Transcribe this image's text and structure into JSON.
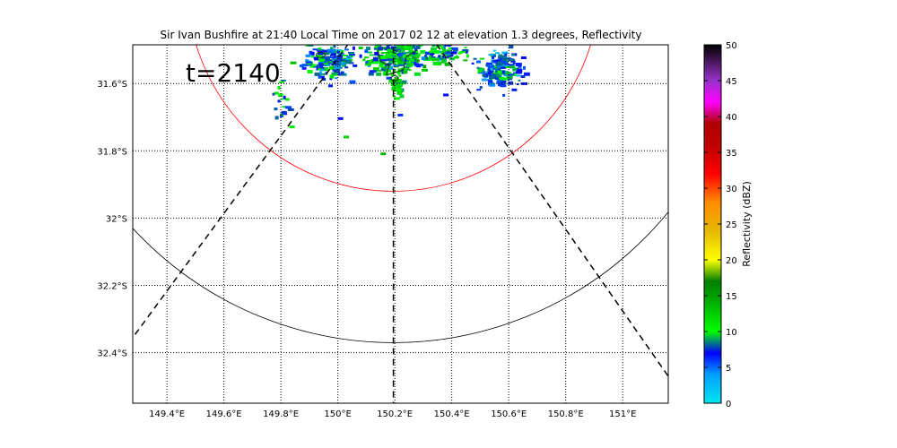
{
  "chart_data": {
    "type": "heatmap",
    "title": "Sir Ivan Bushfire at 21:40 Local Time on 2017 02 12 at elevation 1.3 degrees, Reflectivity",
    "annotation": "t=2140",
    "x_ticks": [
      {
        "value": 149.4,
        "label": "149.4°E"
      },
      {
        "value": 149.6,
        "label": "149.6°E"
      },
      {
        "value": 149.8,
        "label": "149.8°E"
      },
      {
        "value": 150.0,
        "label": "150°E"
      },
      {
        "value": 150.2,
        "label": "150.2°E"
      },
      {
        "value": 150.4,
        "label": "150.4°E"
      },
      {
        "value": 150.6,
        "label": "150.6°E"
      },
      {
        "value": 150.8,
        "label": "150.8°E"
      },
      {
        "value": 151.0,
        "label": "151°E"
      }
    ],
    "y_ticks": [
      {
        "value": -31.6,
        "label": "31.6°S"
      },
      {
        "value": -31.8,
        "label": "31.8°S"
      },
      {
        "value": -32.0,
        "label": "32°S"
      },
      {
        "value": -32.2,
        "label": "32.2°S"
      },
      {
        "value": -32.4,
        "label": "32.4°S"
      }
    ],
    "xlim": [
      149.28,
      151.16
    ],
    "ylim": [
      -32.55,
      -31.485
    ],
    "grid": true,
    "grid_style": "dotted",
    "colorbar": {
      "label": "Reflectivity (dBZ)",
      "min": 0,
      "max": 50,
      "ticks": [
        0,
        5,
        10,
        15,
        20,
        25,
        30,
        35,
        40,
        45,
        50
      ],
      "stops": [
        {
          "value": 0,
          "color": "#00e5ee"
        },
        {
          "value": 4,
          "color": "#00a0ff"
        },
        {
          "value": 7,
          "color": "#0000ff"
        },
        {
          "value": 10,
          "color": "#00ff00"
        },
        {
          "value": 14,
          "color": "#00b000"
        },
        {
          "value": 17,
          "color": "#008000"
        },
        {
          "value": 20,
          "color": "#ffff00"
        },
        {
          "value": 24,
          "color": "#e6b800"
        },
        {
          "value": 28,
          "color": "#ff8c00"
        },
        {
          "value": 32,
          "color": "#ff0000"
        },
        {
          "value": 36,
          "color": "#c00000"
        },
        {
          "value": 39,
          "color": "#b00000"
        },
        {
          "value": 42,
          "color": "#ff00ff"
        },
        {
          "value": 45,
          "color": "#9932cc"
        },
        {
          "value": 50,
          "color": "#000000"
        }
      ]
    },
    "radar": {
      "lon": 150.195,
      "lat": -31.3
    },
    "range_rings": [
      {
        "color": "#ff0000",
        "radius_deg_lat": 0.62
      },
      {
        "color": "#000000",
        "radius_deg_lat": 1.07
      }
    ],
    "radials": [
      {
        "end_lon": 149.28,
        "end_lat": -32.355,
        "style": "dashed"
      },
      {
        "end_lon": 150.195,
        "end_lat": -32.55,
        "style": "dashed"
      },
      {
        "end_lon": 151.16,
        "end_lat": -32.47,
        "style": "dashed"
      }
    ],
    "echo_clusters": [
      {
        "lon": 150.2,
        "lat": -31.51,
        "spread_lon": 0.1,
        "spread_lat": 0.05,
        "count": 260,
        "dbz_mean": 10,
        "dbz_sd": 2.5
      },
      {
        "lon": 149.96,
        "lat": -31.53,
        "spread_lon": 0.09,
        "spread_lat": 0.05,
        "count": 170,
        "dbz_mean": 7.5,
        "dbz_sd": 2.2
      },
      {
        "lon": 150.56,
        "lat": -31.555,
        "spread_lon": 0.08,
        "spread_lat": 0.05,
        "count": 170,
        "dbz_mean": 7.5,
        "dbz_sd": 2.2
      },
      {
        "lon": 150.38,
        "lat": -31.51,
        "spread_lon": 0.08,
        "spread_lat": 0.03,
        "count": 70,
        "dbz_mean": 9,
        "dbz_sd": 2.5
      },
      {
        "lon": 150.2,
        "lat": -31.6,
        "spread_lon": 0.02,
        "spread_lat": 0.04,
        "count": 40,
        "dbz_mean": 11,
        "dbz_sd": 1.5
      },
      {
        "lon": 149.8,
        "lat": -31.65,
        "spread_lon": 0.03,
        "spread_lat": 0.06,
        "count": 20,
        "dbz_mean": 9,
        "dbz_sd": 2
      }
    ],
    "isolated_echoes": [
      {
        "lon": 150.02,
        "lat": -31.755,
        "dbz": 12
      },
      {
        "lon": 149.83,
        "lat": -31.725,
        "dbz": 11
      },
      {
        "lon": 150.15,
        "lat": -31.805,
        "dbz": 14
      },
      {
        "lon": 150.0,
        "lat": -31.7,
        "dbz": 7
      },
      {
        "lon": 150.21,
        "lat": -31.69,
        "dbz": 6
      },
      {
        "lon": 150.17,
        "lat": -31.58,
        "dbz": 6
      },
      {
        "lon": 150.37,
        "lat": -31.63,
        "dbz": 7
      }
    ]
  }
}
